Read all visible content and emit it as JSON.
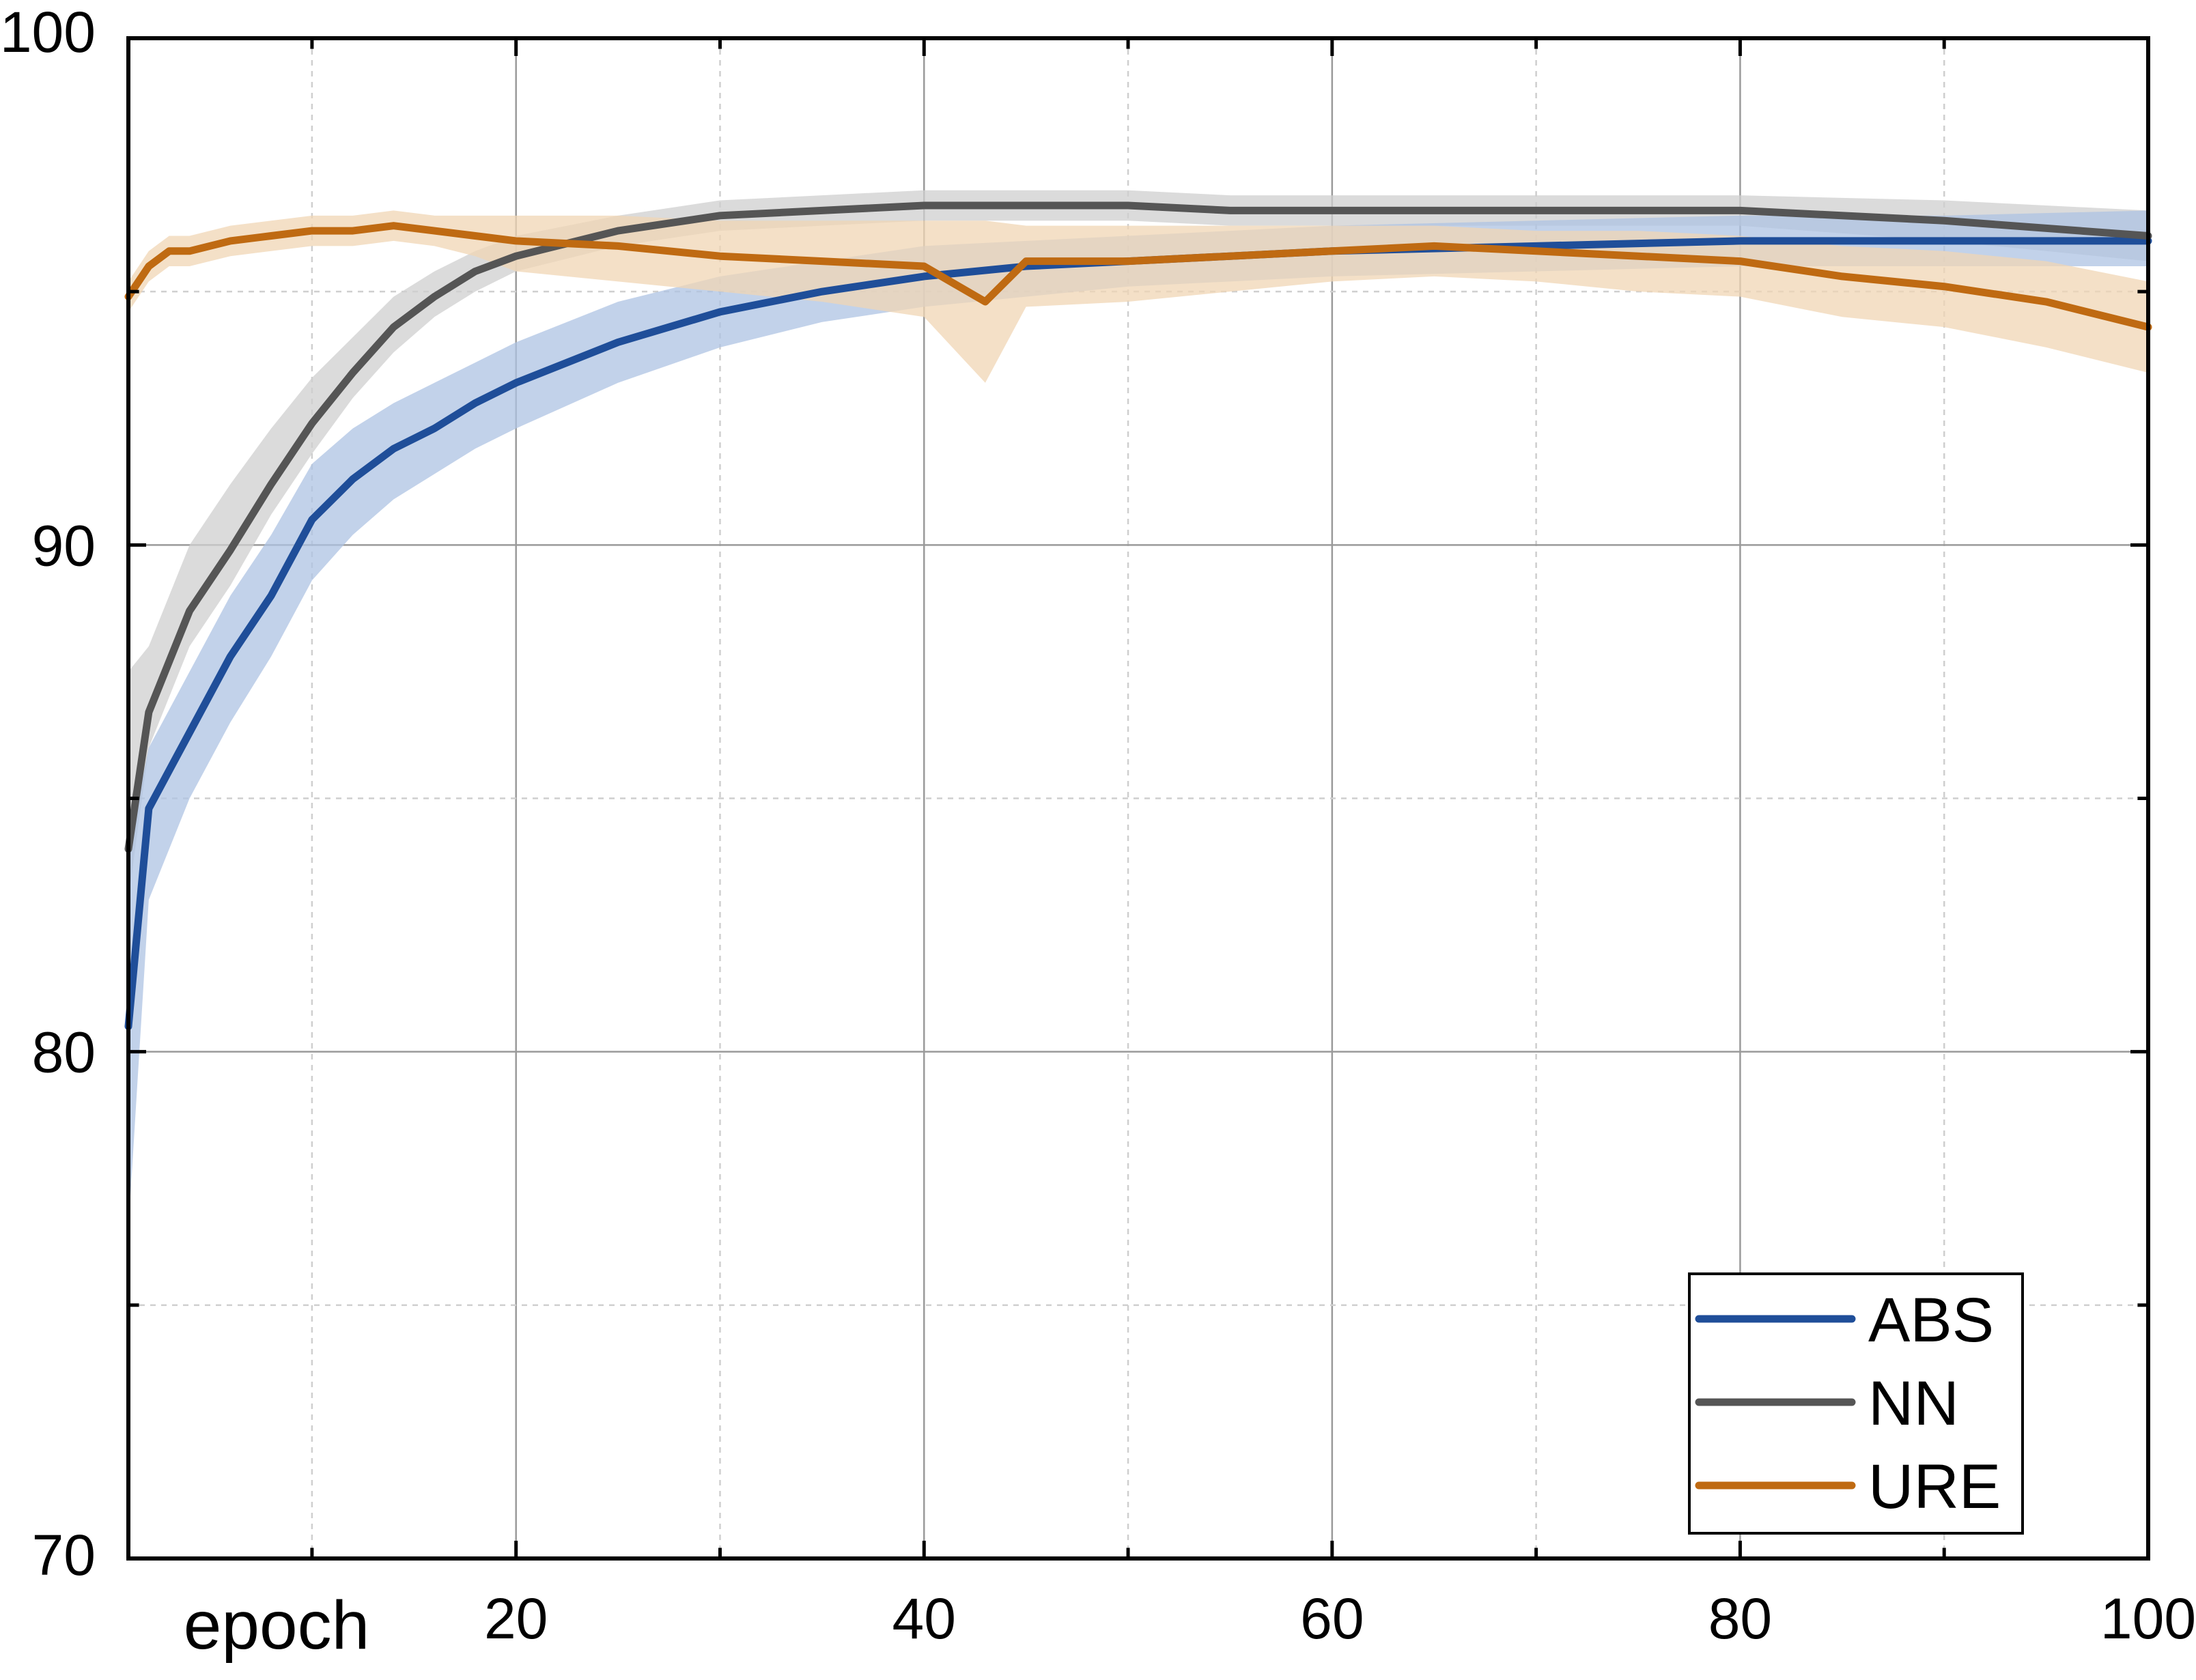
{
  "chart_data": {
    "type": "line",
    "xlabel": "epoch",
    "ylabel": "",
    "xlim": [
      1,
      100
    ],
    "ylim": [
      70,
      100
    ],
    "x_ticks": [
      20,
      40,
      60,
      80,
      100
    ],
    "y_ticks": [
      70,
      80,
      90,
      100
    ],
    "x_tick_labels": [
      "20",
      "40",
      "60",
      "80",
      "100"
    ],
    "y_tick_labels": [
      "70",
      "80",
      "90",
      "100"
    ],
    "grid": true,
    "legend_position": "bottom-right",
    "legend": [
      "ABS",
      "NN",
      "URE"
    ],
    "colors": {
      "ABS": "#1f4e99",
      "NN": "#555555",
      "URE": "#bf6a12"
    },
    "band_colors": {
      "ABS": "#aec3e3",
      "NN": "#cfcfcf",
      "URE": "#f0d6b4"
    },
    "series": [
      {
        "name": "ABS",
        "x": [
          1,
          2,
          4,
          6,
          8,
          10,
          12,
          14,
          16,
          18,
          20,
          25,
          30,
          35,
          40,
          45,
          50,
          55,
          60,
          70,
          80,
          90,
          100
        ],
        "values": [
          80.5,
          84.8,
          86.3,
          87.8,
          89.0,
          90.5,
          91.3,
          91.9,
          92.3,
          92.8,
          93.2,
          94.0,
          94.6,
          95.0,
          95.3,
          95.5,
          95.6,
          95.7,
          95.8,
          95.9,
          96.0,
          96.0,
          96.0
        ],
        "band": [
          [
            76.5,
            84.0
          ],
          [
            83.0,
            86.0
          ],
          [
            85.0,
            87.5
          ],
          [
            86.5,
            89.0
          ],
          [
            87.8,
            90.2
          ],
          [
            89.3,
            91.6
          ],
          [
            90.2,
            92.3
          ],
          [
            90.9,
            92.8
          ],
          [
            91.4,
            93.2
          ],
          [
            91.9,
            93.6
          ],
          [
            92.3,
            94.0
          ],
          [
            93.2,
            94.8
          ],
          [
            93.9,
            95.3
          ],
          [
            94.4,
            95.6
          ],
          [
            94.7,
            95.9
          ],
          [
            94.9,
            96.0
          ],
          [
            95.1,
            96.1
          ],
          [
            95.2,
            96.2
          ],
          [
            95.3,
            96.3
          ],
          [
            95.4,
            96.4
          ],
          [
            95.5,
            96.5
          ],
          [
            95.5,
            96.5
          ],
          [
            95.5,
            96.6
          ]
        ]
      },
      {
        "name": "NN",
        "x": [
          1,
          2,
          4,
          6,
          8,
          10,
          12,
          14,
          16,
          18,
          20,
          25,
          30,
          35,
          40,
          45,
          50,
          55,
          60,
          70,
          80,
          90,
          100
        ],
        "values": [
          84.0,
          86.7,
          88.7,
          89.9,
          91.2,
          92.4,
          93.4,
          94.3,
          94.9,
          95.4,
          95.7,
          96.2,
          96.5,
          96.6,
          96.7,
          96.7,
          96.7,
          96.6,
          96.6,
          96.6,
          96.6,
          96.4,
          96.1
        ],
        "band": [
          [
            83.0,
            87.5
          ],
          [
            86.0,
            88.0
          ],
          [
            88.0,
            90.0
          ],
          [
            89.2,
            91.2
          ],
          [
            90.6,
            92.3
          ],
          [
            91.8,
            93.3
          ],
          [
            92.9,
            94.1
          ],
          [
            93.8,
            94.9
          ],
          [
            94.5,
            95.4
          ],
          [
            95.0,
            95.8
          ],
          [
            95.4,
            96.1
          ],
          [
            95.9,
            96.5
          ],
          [
            96.2,
            96.8
          ],
          [
            96.3,
            96.9
          ],
          [
            96.4,
            97.0
          ],
          [
            96.4,
            97.0
          ],
          [
            96.4,
            97.0
          ],
          [
            96.3,
            96.9
          ],
          [
            96.3,
            96.9
          ],
          [
            96.3,
            96.9
          ],
          [
            96.3,
            96.9
          ],
          [
            96.0,
            96.8
          ],
          [
            95.6,
            96.6
          ]
        ]
      },
      {
        "name": "URE",
        "x": [
          1,
          2,
          3,
          4,
          6,
          8,
          10,
          12,
          14,
          16,
          18,
          20,
          25,
          30,
          35,
          40,
          43,
          45,
          50,
          55,
          60,
          65,
          70,
          75,
          80,
          85,
          90,
          95,
          100
        ],
        "values": [
          94.9,
          95.5,
          95.8,
          95.8,
          96.0,
          96.1,
          96.2,
          96.2,
          96.3,
          96.2,
          96.1,
          96.0,
          95.9,
          95.7,
          95.6,
          95.5,
          94.8,
          95.6,
          95.6,
          95.7,
          95.8,
          95.9,
          95.8,
          95.7,
          95.6,
          95.3,
          95.1,
          94.8,
          94.3
        ],
        "band": [
          [
            94.6,
            95.2
          ],
          [
            95.2,
            95.8
          ],
          [
            95.5,
            96.1
          ],
          [
            95.5,
            96.1
          ],
          [
            95.7,
            96.3
          ],
          [
            95.8,
            96.4
          ],
          [
            95.9,
            96.5
          ],
          [
            95.9,
            96.5
          ],
          [
            96.0,
            96.6
          ],
          [
            95.9,
            96.5
          ],
          [
            95.7,
            96.5
          ],
          [
            95.4,
            96.5
          ],
          [
            95.2,
            96.5
          ],
          [
            95.0,
            96.4
          ],
          [
            94.8,
            96.4
          ],
          [
            94.5,
            96.4
          ],
          [
            93.2,
            96.4
          ],
          [
            94.7,
            96.3
          ],
          [
            94.8,
            96.3
          ],
          [
            95.0,
            96.3
          ],
          [
            95.2,
            96.3
          ],
          [
            95.3,
            96.3
          ],
          [
            95.2,
            96.2
          ],
          [
            95.0,
            96.2
          ],
          [
            94.9,
            96.1
          ],
          [
            94.5,
            95.9
          ],
          [
            94.3,
            95.8
          ],
          [
            93.9,
            95.6
          ],
          [
            93.4,
            95.2
          ]
        ]
      }
    ]
  }
}
